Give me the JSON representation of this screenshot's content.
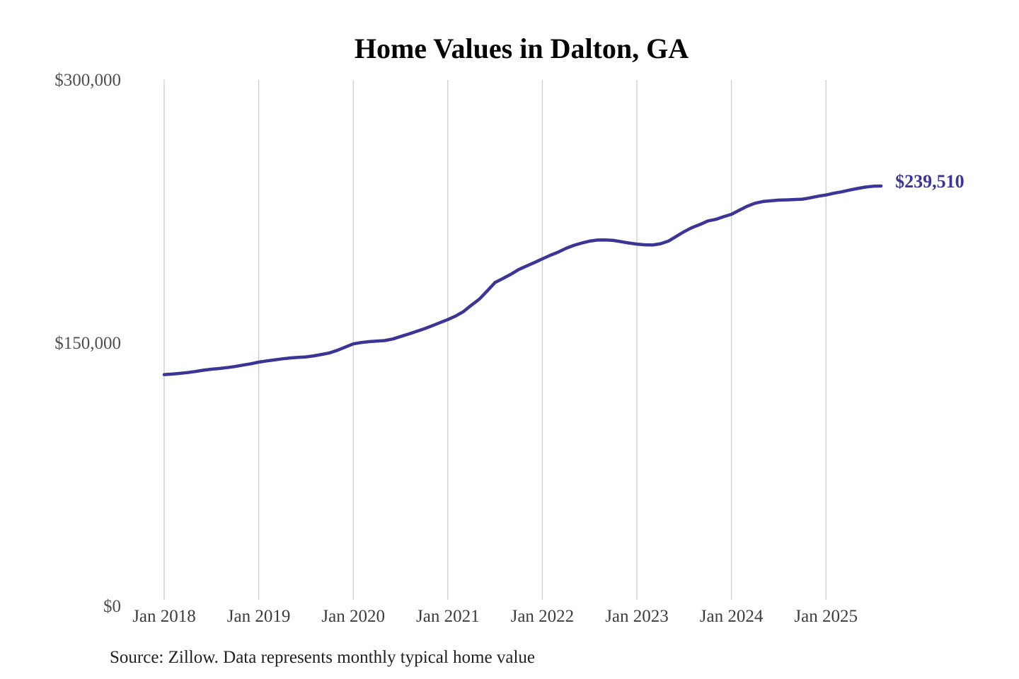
{
  "chart_data": {
    "type": "line",
    "title": "Home Values in Dalton, GA",
    "source_note": "Source: Zillow. Data represents monthly typical home value",
    "end_label": "$239,510",
    "end_value": 239510,
    "x_start": "2018-01",
    "x_end": "2025-08",
    "frequency": "monthly",
    "x_tick_labels": [
      "Jan 2018",
      "Jan 2019",
      "Jan 2020",
      "Jan 2021",
      "Jan 2022",
      "Jan 2023",
      "Jan 2024",
      "Jan 2025"
    ],
    "y_ticks": [
      {
        "value": 0,
        "label": "$0"
      },
      {
        "value": 150000,
        "label": "$150,000"
      },
      {
        "value": 300000,
        "label": "$300,000"
      }
    ],
    "ylim": [
      0,
      300000
    ],
    "grid": "vertical-only",
    "legend": "none",
    "line_color": "#3b3597",
    "grid_color": "#cdcdcd",
    "series": [
      {
        "name": "Typical home value",
        "values": [
          132000,
          132300,
          132700,
          133200,
          133800,
          134500,
          135100,
          135500,
          136000,
          136600,
          137400,
          138200,
          139100,
          139800,
          140400,
          141000,
          141500,
          141800,
          142100,
          142700,
          143500,
          144400,
          145900,
          147700,
          149500,
          150300,
          150800,
          151100,
          151400,
          152300,
          153700,
          155100,
          156600,
          158100,
          159800,
          161600,
          163400,
          165400,
          168000,
          171600,
          175000,
          179700,
          184500,
          186800,
          189200,
          191900,
          193900,
          195900,
          198000,
          200000,
          201800,
          204000,
          205700,
          207000,
          208100,
          208700,
          208800,
          208500,
          207800,
          207000,
          206400,
          206000,
          205900,
          206600,
          208100,
          210800,
          213500,
          215800,
          217600,
          219600,
          220500,
          222000,
          223400,
          225700,
          228000,
          229700,
          230700,
          231100,
          231500,
          231600,
          231800,
          232000,
          232800,
          233700,
          234400,
          235400,
          236200,
          237200,
          238100,
          238900,
          239400,
          239510
        ]
      }
    ]
  }
}
